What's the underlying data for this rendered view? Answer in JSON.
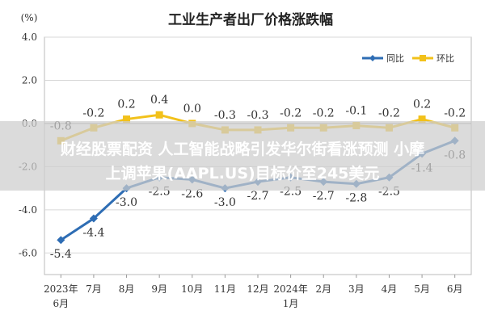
{
  "chart_data": {
    "type": "line",
    "title": "工业生产者出厂价格涨跌幅",
    "unit_label": "(%)",
    "categories": [
      "2023年6月",
      "7月",
      "8月",
      "9月",
      "10月",
      "11月",
      "12月",
      "2024年1月",
      "2月",
      "3月",
      "4月",
      "5月",
      "6月"
    ],
    "ylim": [
      -7.0,
      4.0
    ],
    "yticks": [
      "4.0",
      "2.0",
      "0.0",
      "-2.0",
      "-4.0",
      "-6.0"
    ],
    "grid": true,
    "legend_position": "top-right",
    "series": [
      {
        "name": "同比",
        "color": "#2e6db4",
        "values": [
          -5.4,
          -4.4,
          -3.0,
          -2.5,
          -2.6,
          -3.0,
          -2.7,
          -2.5,
          -2.7,
          -2.8,
          -2.5,
          -1.4,
          -0.8
        ],
        "labels": [
          "-5.4",
          "-4.4",
          "-3.0",
          "-2.5",
          "-2.6",
          "-3.0",
          "-2.7",
          "-2.5",
          "-2.7",
          "-2.8",
          "-2.5",
          "-1.4",
          "-0.8"
        ]
      },
      {
        "name": "环比",
        "color": "#f2c11a",
        "values": [
          -0.8,
          -0.2,
          0.2,
          0.4,
          0.0,
          -0.3,
          -0.3,
          -0.2,
          -0.2,
          -0.1,
          -0.2,
          0.2,
          -0.2
        ],
        "labels": [
          "-0.8",
          "-0.2",
          "0.2",
          "0.4",
          "0.0",
          "-0.3",
          "-0.3",
          "-0.2",
          "-0.2",
          "-0.1",
          "-0.2",
          "0.2",
          "-0.2"
        ]
      }
    ]
  },
  "banner": {
    "line1": "财经股票配资 人工智能战略引发华尔街看涨预测 小摩",
    "line2": "上调苹果(AAPL.US)目标价至245美元"
  }
}
